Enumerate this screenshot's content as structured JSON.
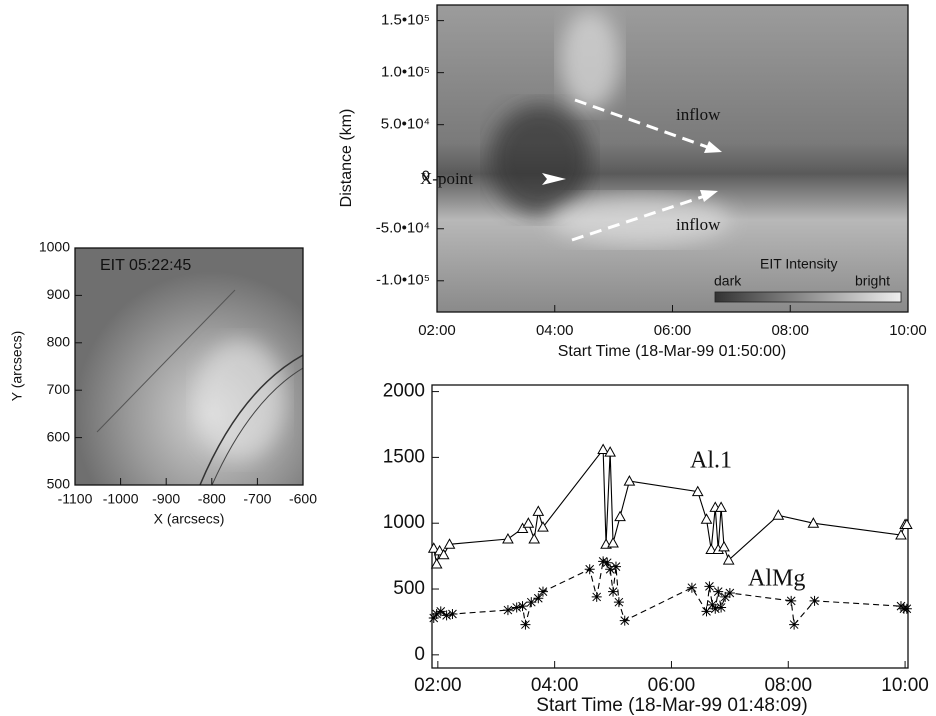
{
  "chart_data": [
    {
      "type": "image",
      "xlabel": "X (arcsecs)",
      "ylabel": "Y (arcsecs)",
      "annotations": [
        "EIT 05:22:45"
      ],
      "xlim": [
        -1100,
        -600
      ],
      "xticks": [
        -1100,
        -1000,
        -900,
        -800,
        -700,
        -600
      ],
      "ylim": [
        500,
        1000
      ],
      "yticks": [
        500,
        600,
        700,
        800,
        900,
        1000
      ]
    },
    {
      "type": "image",
      "xlabel": "Start Time (18-Mar-99 01:50:00)",
      "ylabel": "Distance (km)",
      "annotations": [
        "inflow",
        "X-point",
        "inflow",
        "EIT Intensity",
        "dark",
        "bright"
      ],
      "xlim": [
        2,
        10
      ],
      "xticks": [
        {
          "value": 2,
          "label": "02:00"
        },
        {
          "value": 4,
          "label": "04:00"
        },
        {
          "value": 6,
          "label": "06:00"
        },
        {
          "value": 8,
          "label": "08:00"
        },
        {
          "value": 10,
          "label": "10:00"
        }
      ],
      "ylim": [
        -130000,
        165000
      ],
      "yticks": [
        {
          "value": -100000,
          "label": "-1.0•10⁵"
        },
        {
          "value": -50000,
          "label": "-5.0•10⁴"
        },
        0,
        {
          "value": 50000,
          "label": "5.0•10⁴"
        },
        {
          "value": 100000,
          "label": "1.0•10⁵"
        },
        {
          "value": 150000,
          "label": "1.5•10⁵"
        }
      ]
    },
    {
      "type": "line",
      "xlabel": "Start Time (18-Mar-99 01:48:09)",
      "xlim": [
        1.9,
        10.05
      ],
      "xticks": [
        {
          "value": 2,
          "label": "02:00"
        },
        {
          "value": 4,
          "label": "04:00"
        },
        {
          "value": 6,
          "label": "06:00"
        },
        {
          "value": 8,
          "label": "08:00"
        },
        {
          "value": 10,
          "label": "10:00"
        }
      ],
      "ylim": [
        -100,
        2050
      ],
      "yticks": [
        0,
        500,
        1000,
        1500,
        2000
      ],
      "series": [
        {
          "name": "Al.1",
          "color": "#000000",
          "marker": "triangle",
          "dashed": false,
          "x": [
            1.93,
            1.98,
            2.03,
            2.1,
            2.2,
            3.2,
            3.45,
            3.55,
            3.65,
            3.72,
            3.8,
            4.83,
            4.88,
            4.95,
            5.0,
            5.12,
            5.28,
            6.45,
            6.6,
            6.68,
            6.75,
            6.8,
            6.85,
            6.9,
            6.98,
            7.83,
            8.43,
            9.93,
            10.0,
            10.03
          ],
          "values": [
            810,
            690,
            790,
            760,
            840,
            880,
            960,
            1000,
            880,
            1090,
            970,
            1560,
            840,
            1540,
            850,
            1050,
            1320,
            1240,
            1030,
            800,
            1120,
            800,
            1120,
            820,
            720,
            1060,
            1000,
            910,
            990,
            990
          ]
        },
        {
          "name": "AlMg",
          "color": "#000000",
          "marker": "asterisk",
          "dashed": true,
          "x": [
            1.93,
            1.98,
            2.05,
            2.15,
            2.25,
            3.2,
            3.35,
            3.45,
            3.5,
            3.6,
            3.72,
            3.8,
            4.6,
            4.72,
            4.83,
            4.9,
            4.95,
            5.0,
            5.05,
            5.1,
            5.2,
            6.35,
            6.6,
            6.65,
            6.7,
            6.75,
            6.8,
            6.85,
            6.92,
            7.0,
            8.05,
            8.1,
            8.45,
            9.93,
            9.98,
            10.03
          ],
          "values": [
            280,
            310,
            330,
            300,
            310,
            340,
            360,
            370,
            230,
            400,
            430,
            480,
            650,
            440,
            710,
            700,
            650,
            480,
            670,
            400,
            260,
            510,
            330,
            520,
            380,
            350,
            480,
            360,
            440,
            470,
            410,
            230,
            410,
            370,
            350,
            350
          ]
        }
      ]
    }
  ]
}
